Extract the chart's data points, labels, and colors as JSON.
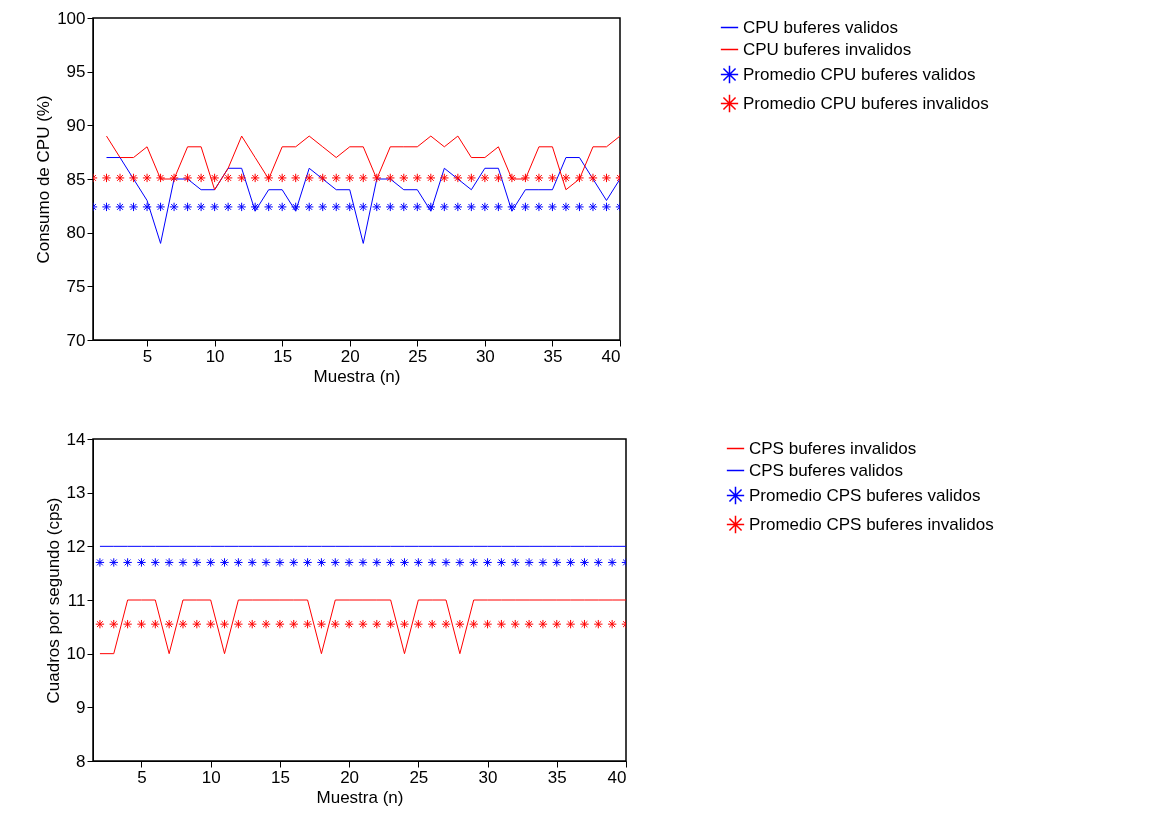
{
  "chart_data": [
    {
      "type": "line",
      "xlabel": "Muestra (n)",
      "ylabel": "Consumo de CPU (%)",
      "xlim": [
        1,
        40
      ],
      "xticks": [
        5,
        10,
        15,
        20,
        25,
        30,
        35,
        40
      ],
      "ylim": [
        70,
        100
      ],
      "yticks": [
        70,
        75,
        80,
        85,
        90,
        95,
        100
      ],
      "grid": false,
      "legend": "right",
      "x": [
        1,
        2,
        3,
        4,
        5,
        6,
        7,
        8,
        9,
        10,
        11,
        12,
        13,
        14,
        15,
        16,
        17,
        18,
        19,
        20,
        21,
        22,
        23,
        24,
        25,
        26,
        27,
        28,
        29,
        30,
        31,
        32,
        33,
        34,
        35,
        36,
        37,
        38,
        39,
        40
      ],
      "series": [
        {
          "name": "CPU buferes validos",
          "type": "line",
          "color": "#0000ff",
          "values": [
            null,
            87,
            87,
            85,
            83,
            79,
            85,
            85,
            84,
            84,
            86,
            86,
            82,
            84,
            84,
            82,
            86,
            85,
            84,
            84,
            79,
            85,
            85,
            84,
            84,
            82,
            86,
            85,
            84,
            86,
            86,
            82,
            84,
            84,
            84,
            87,
            87,
            85,
            83,
            85
          ]
        },
        {
          "name": "CPU buferes invalidos",
          "type": "line",
          "color": "#ff0000",
          "values": [
            null,
            89,
            87,
            87,
            88,
            85,
            85,
            88,
            88,
            84,
            86,
            89,
            87,
            85,
            88,
            88,
            89,
            88,
            87,
            88,
            88,
            85,
            88,
            88,
            88,
            89,
            88,
            89,
            87,
            87,
            88,
            85,
            85,
            88,
            88,
            84,
            85,
            88,
            88,
            89
          ]
        },
        {
          "name": "Promedio CPU buferes validos",
          "type": "scatter",
          "marker": "cross",
          "color": "#0000ff",
          "values": [
            82.4,
            82.4,
            82.4,
            82.4,
            82.4,
            82.4,
            82.4,
            82.4,
            82.4,
            82.4,
            82.4,
            82.4,
            82.4,
            82.4,
            82.4,
            82.4,
            82.4,
            82.4,
            82.4,
            82.4,
            82.4,
            82.4,
            82.4,
            82.4,
            82.4,
            82.4,
            82.4,
            82.4,
            82.4,
            82.4,
            82.4,
            82.4,
            82.4,
            82.4,
            82.4,
            82.4,
            82.4,
            82.4,
            82.4,
            82.4
          ]
        },
        {
          "name": "Promedio CPU buferes invalidos",
          "type": "scatter",
          "marker": "cross",
          "color": "#ff0000",
          "values": [
            85.1,
            85.1,
            85.1,
            85.1,
            85.1,
            85.1,
            85.1,
            85.1,
            85.1,
            85.1,
            85.1,
            85.1,
            85.1,
            85.1,
            85.1,
            85.1,
            85.1,
            85.1,
            85.1,
            85.1,
            85.1,
            85.1,
            85.1,
            85.1,
            85.1,
            85.1,
            85.1,
            85.1,
            85.1,
            85.1,
            85.1,
            85.1,
            85.1,
            85.1,
            85.1,
            85.1,
            85.1,
            85.1,
            85.1,
            85.1
          ]
        }
      ]
    },
    {
      "type": "line",
      "xlabel": "Muestra (n)",
      "ylabel": "Cuadros por segundo (cps)",
      "xlim": [
        1.5,
        40
      ],
      "xticks": [
        5,
        10,
        15,
        20,
        25,
        30,
        35,
        40
      ],
      "ylim": [
        8,
        14
      ],
      "yticks": [
        8,
        9,
        10,
        11,
        12,
        13,
        14
      ],
      "grid": false,
      "legend": "right",
      "x": [
        2,
        3,
        4,
        5,
        6,
        7,
        8,
        9,
        10,
        11,
        12,
        13,
        14,
        15,
        16,
        17,
        18,
        19,
        20,
        21,
        22,
        23,
        24,
        25,
        26,
        27,
        28,
        29,
        30,
        31,
        32,
        33,
        34,
        35,
        36,
        37,
        38,
        39,
        40
      ],
      "series": [
        {
          "name": "CPS buferes invalidos",
          "type": "line",
          "color": "#ff0000",
          "values": [
            10,
            10,
            11,
            11,
            11,
            10,
            11,
            11,
            11,
            10,
            11,
            11,
            11,
            11,
            11,
            11,
            10,
            11,
            11,
            11,
            11,
            11,
            10,
            11,
            11,
            11,
            10,
            11,
            11,
            11,
            11,
            11,
            11,
            11,
            11,
            11,
            11,
            11,
            11
          ]
        },
        {
          "name": "CPS buferes validos",
          "type": "line",
          "color": "#0000ff",
          "values": [
            12,
            12,
            12,
            12,
            12,
            12,
            12,
            12,
            12,
            12,
            12,
            12,
            12,
            12,
            12,
            12,
            12,
            12,
            12,
            12,
            12,
            12,
            12,
            12,
            12,
            12,
            12,
            12,
            12,
            12,
            12,
            12,
            12,
            12,
            12,
            12,
            12,
            12,
            12
          ]
        },
        {
          "name": "Promedio CPS buferes validos",
          "type": "scatter",
          "marker": "cross",
          "color": "#0000ff",
          "values": [
            11.7,
            11.7,
            11.7,
            11.7,
            11.7,
            11.7,
            11.7,
            11.7,
            11.7,
            11.7,
            11.7,
            11.7,
            11.7,
            11.7,
            11.7,
            11.7,
            11.7,
            11.7,
            11.7,
            11.7,
            11.7,
            11.7,
            11.7,
            11.7,
            11.7,
            11.7,
            11.7,
            11.7,
            11.7,
            11.7,
            11.7,
            11.7,
            11.7,
            11.7,
            11.7,
            11.7,
            11.7,
            11.7,
            11.7
          ]
        },
        {
          "name": "Promedio CPS buferes invalidos",
          "type": "scatter",
          "marker": "cross",
          "color": "#ff0000",
          "values": [
            10.55,
            10.55,
            10.55,
            10.55,
            10.55,
            10.55,
            10.55,
            10.55,
            10.55,
            10.55,
            10.55,
            10.55,
            10.55,
            10.55,
            10.55,
            10.55,
            10.55,
            10.55,
            10.55,
            10.55,
            10.55,
            10.55,
            10.55,
            10.55,
            10.55,
            10.55,
            10.55,
            10.55,
            10.55,
            10.55,
            10.55,
            10.55,
            10.55,
            10.55,
            10.55,
            10.55,
            10.55,
            10.55,
            10.55
          ]
        }
      ]
    }
  ]
}
